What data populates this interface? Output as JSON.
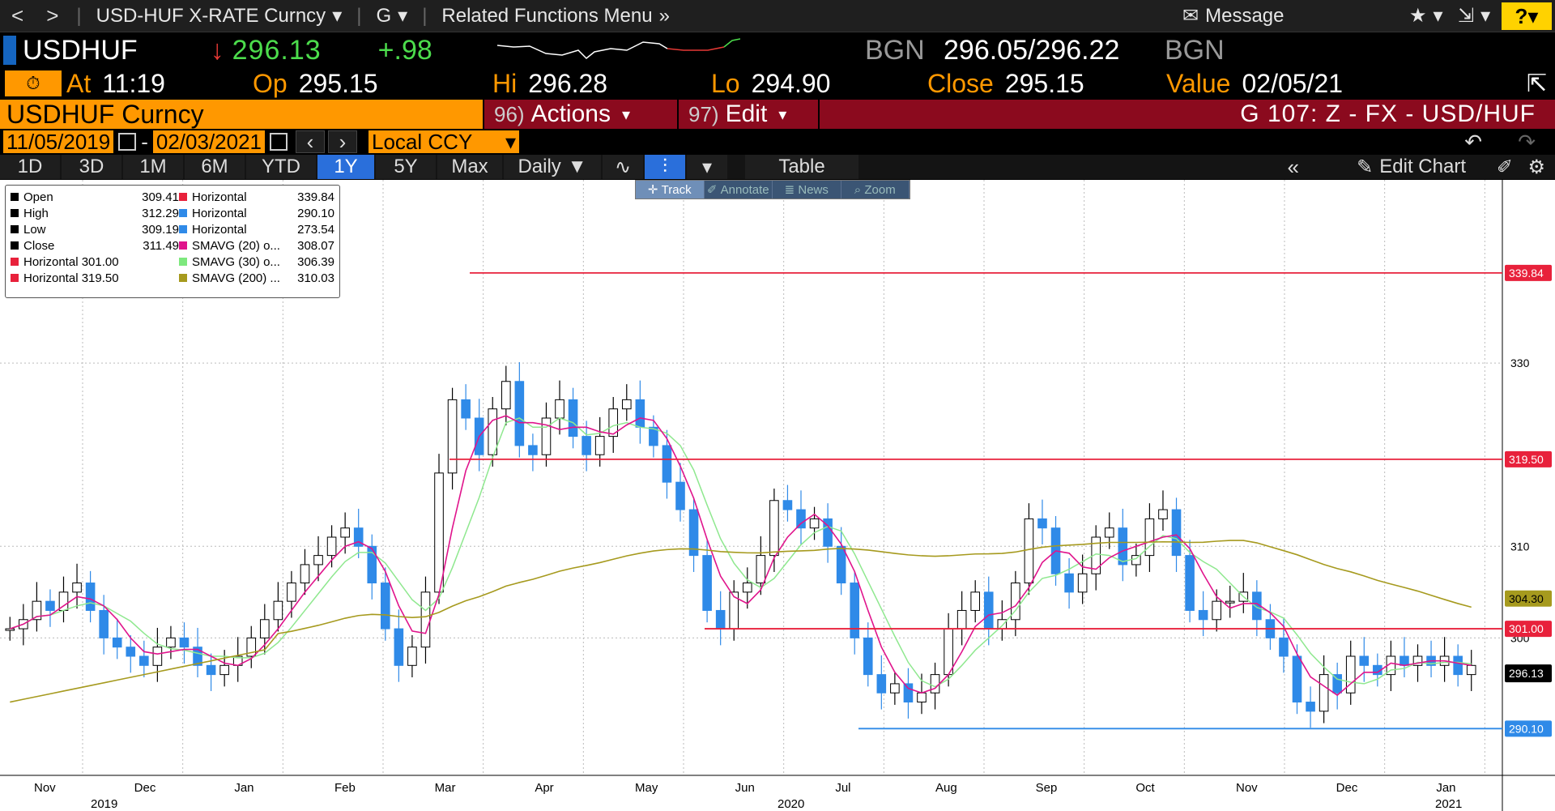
{
  "topbar": {
    "back": "<",
    "forward": ">",
    "security_menu": "USD-HUF X-RATE Curncy",
    "function_menu": "G",
    "related": "Related Functions Menu",
    "message": "Message",
    "help": "?"
  },
  "ticker": {
    "symbol": "USDHUF",
    "arrow": "↓",
    "price": "296.13",
    "change": "+.98",
    "source1": "BGN",
    "bid_ask": "296.05/296.22",
    "source2": "BGN"
  },
  "quote": {
    "at_label": "At",
    "at_value": "11:19",
    "op_label": "Op",
    "op_value": "295.15",
    "hi_label": "Hi",
    "hi_value": "296.28",
    "lo_label": "Lo",
    "lo_value": "294.90",
    "close_label": "Close",
    "close_value": "295.15",
    "value_label": "Value",
    "value_value": "02/05/21"
  },
  "security_bar": {
    "security": "USDHUF Curncy",
    "actions_num": "96)",
    "actions": "Actions",
    "edit_num": "97)",
    "edit": "Edit",
    "chart_id": "G 107: Z - FX - USD/HUF"
  },
  "range": {
    "start": "11/05/2019",
    "dash": "-",
    "end": "02/03/2021",
    "currency": "Local CCY"
  },
  "periods": [
    "1D",
    "3D",
    "1M",
    "6M",
    "YTD",
    "1Y",
    "5Y",
    "Max"
  ],
  "period_active": "1Y",
  "frequency": "Daily",
  "table_label": "Table",
  "edit_chart": "Edit Chart",
  "modes": [
    "Track",
    "Annotate",
    "News",
    "Zoom"
  ],
  "legend": {
    "left": [
      {
        "label": "Open",
        "value": "309.41",
        "color": "#000000"
      },
      {
        "label": "High",
        "value": "312.29",
        "color": "#000000"
      },
      {
        "label": "Low",
        "value": "309.19",
        "color": "#000000"
      },
      {
        "label": "Close",
        "value": "311.49",
        "color": "#000000"
      },
      {
        "label": "Horizontal 301.00",
        "value": "",
        "color": "#e8213b"
      },
      {
        "label": "Horizontal 319.50",
        "value": "",
        "color": "#e8213b"
      }
    ],
    "right": [
      {
        "label": "Horizontal",
        "value": "339.84",
        "color": "#e8213b"
      },
      {
        "label": "Horizontal",
        "value": "290.10",
        "color": "#2f8ae8"
      },
      {
        "label": "Horizontal",
        "value": "273.54",
        "color": "#2f8ae8"
      },
      {
        "label": "SMAVG (20) o...",
        "value": "308.07",
        "color": "#e0148c"
      },
      {
        "label": "SMAVG (30) o...",
        "value": "306.39",
        "color": "#7de87d"
      },
      {
        "label": "SMAVG (200) ...",
        "value": "310.03",
        "color": "#a69a1e"
      }
    ]
  },
  "chart_data": {
    "type": "candlestick",
    "ylim": [
      285,
      350
    ],
    "yticks": [
      300,
      310,
      330
    ],
    "x_months": [
      "Nov",
      "Dec",
      "Jan",
      "Feb",
      "Mar",
      "Apr",
      "May",
      "Jun",
      "Jul",
      "Aug",
      "Sep",
      "Oct",
      "Nov",
      "Dec",
      "Jan"
    ],
    "x_years": [
      "2019",
      "2020",
      "2021"
    ],
    "close_series": [
      301,
      302,
      304,
      303,
      305,
      306,
      303,
      300,
      299,
      298,
      297,
      299,
      300,
      299,
      297,
      296,
      297,
      298,
      300,
      302,
      304,
      306,
      308,
      309,
      311,
      312,
      310,
      306,
      301,
      297,
      299,
      305,
      318,
      326,
      324,
      320,
      325,
      328,
      321,
      320,
      324,
      326,
      322,
      320,
      322,
      325,
      326,
      323,
      321,
      317,
      314,
      309,
      303,
      301,
      305,
      306,
      309,
      315,
      314,
      312,
      313,
      310,
      306,
      300,
      296,
      294,
      295,
      293,
      294,
      296,
      301,
      303,
      305,
      301,
      302,
      306,
      313,
      312,
      307,
      305,
      307,
      311,
      312,
      308,
      309,
      313,
      314,
      309,
      303,
      302,
      304,
      304,
      305,
      302,
      300,
      298,
      293,
      292,
      296,
      294,
      298,
      297,
      296,
      298,
      297,
      298,
      297,
      298,
      296,
      297
    ],
    "horizontal_lines": [
      {
        "value": 339.84,
        "label": "339.84",
        "color": "#e8213b"
      },
      {
        "value": 319.5,
        "label": "319.50",
        "color": "#e8213b"
      },
      {
        "value": 301.0,
        "label": "301.00",
        "color": "#e8213b"
      },
      {
        "value": 290.1,
        "label": "290.10",
        "color": "#2f8ae8"
      }
    ],
    "last_price": {
      "value": 296.13,
      "label": "296.13"
    },
    "sma200_last": {
      "value": 304.3,
      "label": "304.30"
    },
    "colors": {
      "up": "#000000",
      "down": "#2f8ae8",
      "sma20": "#e0148c",
      "sma30": "#8fe88f",
      "sma200": "#a69a1e"
    }
  }
}
